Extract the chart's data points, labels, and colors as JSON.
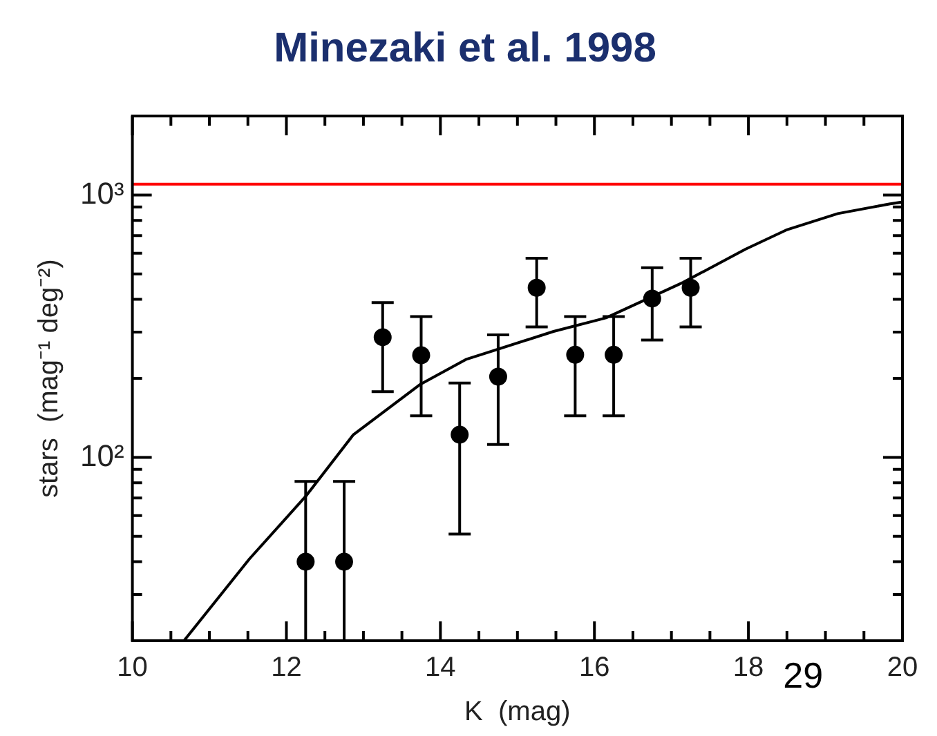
{
  "chart_data": {
    "type": "scatter",
    "title": "Minezaki et al. 1998",
    "xlabel": "K  (mag)",
    "ylabel": "stars  (mag⁻¹ deg⁻²)",
    "annotations": [
      "29"
    ],
    "log": "y",
    "grid": false,
    "legend": false,
    "xlim": [
      10,
      20
    ],
    "xticks": [
      10,
      {
        "value": 10.5,
        "label": null
      },
      {
        "value": 11,
        "label": null
      },
      {
        "value": 11.5,
        "label": null
      },
      12,
      {
        "value": 12.5,
        "label": null
      },
      {
        "value": 13,
        "label": null
      },
      {
        "value": 13.5,
        "label": null
      },
      14,
      {
        "value": 14.5,
        "label": null
      },
      {
        "value": 15,
        "label": null
      },
      {
        "value": 15.5,
        "label": null
      },
      16,
      {
        "value": 16.5,
        "label": null
      },
      {
        "value": 17,
        "label": null
      },
      {
        "value": 17.5,
        "label": null
      },
      18,
      {
        "value": 18.5,
        "label": null
      },
      {
        "value": 19,
        "label": null
      },
      {
        "value": 19.5,
        "label": null
      },
      20
    ],
    "ylim": [
      20,
      2000
    ],
    "yticks": [
      {
        "value": 20,
        "label": null
      },
      {
        "value": 30,
        "label": null
      },
      {
        "value": 40,
        "label": null
      },
      {
        "value": 50,
        "label": null
      },
      {
        "value": 60,
        "label": null
      },
      {
        "value": 70,
        "label": null
      },
      {
        "value": 80,
        "label": null
      },
      {
        "value": 90,
        "label": null
      },
      {
        "value": 100,
        "label": "10²"
      },
      {
        "value": 200,
        "label": null
      },
      {
        "value": 300,
        "label": null
      },
      {
        "value": 400,
        "label": null
      },
      {
        "value": 500,
        "label": null
      },
      {
        "value": 600,
        "label": null
      },
      {
        "value": 700,
        "label": null
      },
      {
        "value": 800,
        "label": null
      },
      {
        "value": 900,
        "label": null
      },
      {
        "value": 1000,
        "label": "10³"
      },
      {
        "value": 2000,
        "label": null
      }
    ],
    "ref_lines": [
      {
        "axis": "y",
        "value": 1100,
        "color": "#ff0000"
      }
    ],
    "series": [
      {
        "type": "scatter",
        "color": "#000000",
        "marker": "circle",
        "x": [
          12.25,
          12.75,
          13.25,
          13.75,
          14.25,
          14.75,
          15.25,
          15.75,
          16.25,
          16.75,
          17.25
        ],
        "values": [
          40,
          40,
          287,
          245,
          122,
          203,
          443,
          246,
          246,
          403,
          443
        ],
        "errors": [
          [
            20,
            81
          ],
          [
            20,
            81
          ],
          [
            178,
            389
          ],
          [
            144,
            344
          ],
          [
            51,
            192
          ],
          [
            112,
            293
          ],
          [
            314,
            574
          ],
          [
            144,
            344
          ],
          [
            144,
            344
          ],
          [
            280,
            528
          ],
          [
            314,
            574
          ]
        ]
      },
      {
        "type": "line",
        "color": "#000000",
        "marker": "none",
        "line_style": "solid",
        "x": [
          10.67,
          11.52,
          12.25,
          12.87,
          13.73,
          14.33,
          15.47,
          16.15,
          17.15,
          17.96,
          18.49,
          19.16,
          19.84,
          20
        ],
        "values": [
          20,
          41,
          71,
          122,
          189,
          236,
          302,
          340,
          464,
          621,
          735,
          849,
          925,
          940
        ]
      }
    ]
  }
}
